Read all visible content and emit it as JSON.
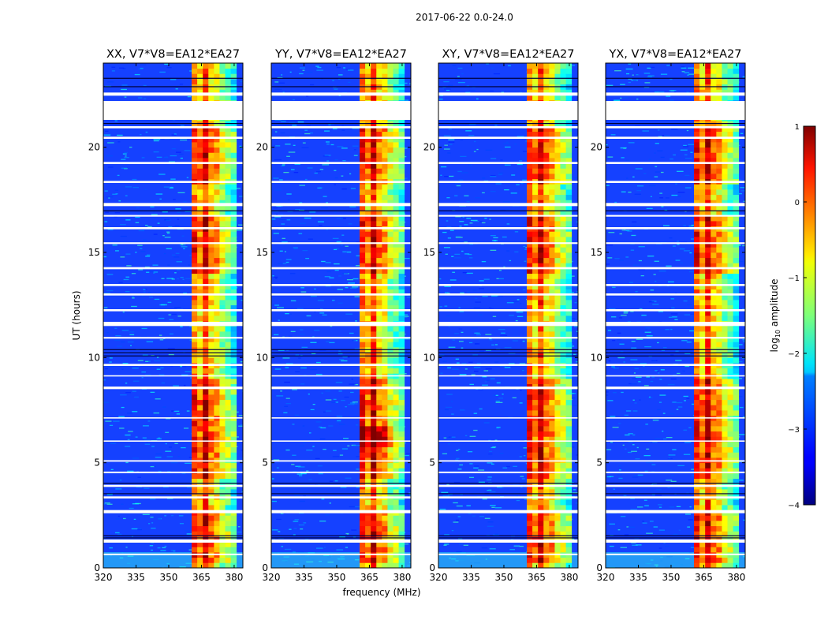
{
  "figure": {
    "suptitle": "2017-06-22 0.0-24.0"
  },
  "chart_data": {
    "type": "heatmap",
    "panel_titles": [
      "XX, V7*V8=EA12*EA27",
      "YY, V7*V8=EA12*EA27",
      "XY, V7*V8=EA12*EA27",
      "YX, V7*V8=EA12*EA27"
    ],
    "xlabel": "frequency (MHz)",
    "ylabel": "UT (hours)",
    "xlim": [
      320,
      384
    ],
    "ylim": [
      0,
      24
    ],
    "xticks": [
      "320",
      "335",
      "350",
      "365",
      "380"
    ],
    "xtick_values": [
      320,
      335,
      350,
      365,
      380
    ],
    "yticks": [
      "0",
      "5",
      "10",
      "15",
      "20"
    ],
    "ytick_values": [
      0,
      5,
      10,
      15,
      20
    ],
    "colorbar": {
      "label": "log10 amplitude",
      "label_main": "log",
      "label_sub": "10",
      "label_rest": " amplitude",
      "range": [
        -4,
        1
      ],
      "ticks": [
        "1",
        "0",
        "−1",
        "−2",
        "−3",
        "−4"
      ],
      "tick_values": [
        1,
        0,
        -1,
        -2,
        -3,
        -4
      ],
      "colormap": "jet"
    },
    "bright_band_mhz": [
      360.5,
      381
    ],
    "blank_hours": [
      [
        21.3,
        22.2
      ],
      [
        22.45,
        22.6
      ]
    ]
  }
}
